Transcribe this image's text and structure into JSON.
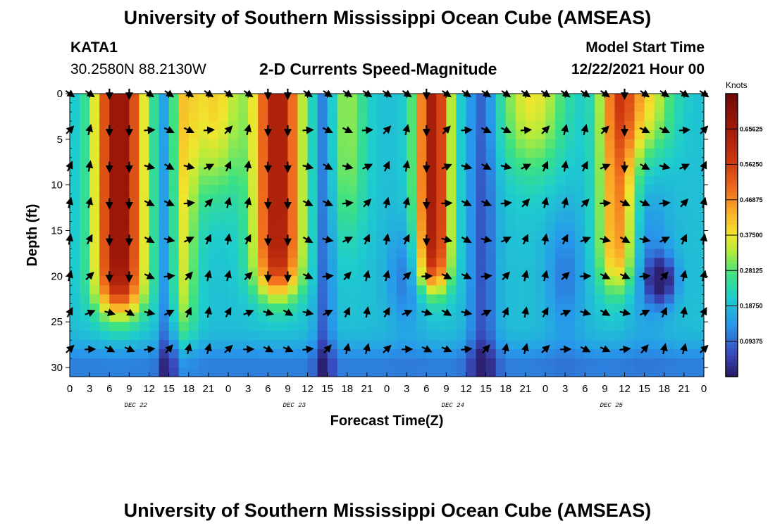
{
  "header": {
    "title": "University of Southern Mississippi Ocean Cube (AMSEAS)",
    "station": "KATA1",
    "coords": "30.2580N  88.2130W",
    "subtitle": "2-D Currents Speed-Magnitude",
    "model_start_label": "Model Start Time",
    "model_start_value": "12/22/2021 Hour 00"
  },
  "footer": {
    "title": "University of Southern Mississippi Ocean Cube (AMSEAS)"
  },
  "chart_data": {
    "type": "heatmap",
    "title": "2-D Currents Speed-Magnitude",
    "xlabel": "Forecast Time(Z)",
    "ylabel": "Depth (ft)",
    "x_tick_labels": [
      "0",
      "3",
      "6",
      "9",
      "12",
      "15",
      "18",
      "21",
      "0",
      "3",
      "6",
      "9",
      "12",
      "15",
      "18",
      "21",
      "0",
      "3",
      "6",
      "9",
      "12",
      "15",
      "18",
      "21",
      "0",
      "3",
      "6",
      "9",
      "12",
      "15",
      "18",
      "21",
      "0"
    ],
    "x_range_hours": [
      0,
      96
    ],
    "day_labels": [
      {
        "label": "DEC 22",
        "center_hour": 10
      },
      {
        "label": "DEC 23",
        "center_hour": 34
      },
      {
        "label": "DEC 24",
        "center_hour": 58
      },
      {
        "label": "DEC 25",
        "center_hour": 82
      }
    ],
    "y_ticks": [
      0,
      5,
      10,
      15,
      20,
      25,
      30
    ],
    "y_tick_labels": [
      "0",
      "5",
      "10",
      "15",
      "20",
      "25",
      "30"
    ],
    "y_range_ft": [
      0,
      31
    ],
    "colorbar": {
      "unit": "Knots",
      "min": 0,
      "max": 0.75,
      "tick_values": [
        0.65625,
        0.5625,
        0.46875,
        0.375,
        0.28125,
        0.1875,
        0.09375
      ],
      "tick_labels": [
        "0.65625",
        "0.56250",
        "0.46875",
        "0.37500",
        "0.28125",
        "0.18750",
        "0.09375"
      ]
    },
    "speed_features_knots": [
      {
        "hours": [
          3.5,
          11.5
        ],
        "depth_ft": [
          0,
          25
        ],
        "peak": 0.68,
        "note": "DEC 22 strong surface current"
      },
      {
        "hours": [
          27.5,
          36
        ],
        "depth_ft": [
          0,
          22
        ],
        "peak": 0.66,
        "note": "DEC 23 strong surface current"
      },
      {
        "hours": [
          52,
          58
        ],
        "depth_ft": [
          0,
          22
        ],
        "peak": 0.66,
        "note": "DEC 24 strong surface current"
      },
      {
        "hours": [
          71,
          85
        ],
        "depth_ft": [
          0,
          21
        ],
        "peak": 0.5,
        "note": "DEC 25 moderate surface current"
      },
      {
        "hours": [
          84,
          90
        ],
        "depth_ft": [
          18,
          22
        ],
        "peak": 0.02,
        "note": "weak current pocket"
      }
    ],
    "vector_rows_depth_ft": [
      0,
      4,
      8,
      12,
      16,
      20,
      24,
      28
    ],
    "vector_columns_hours": [
      0,
      3,
      6,
      9,
      12,
      15,
      18,
      21,
      24,
      27,
      30,
      33,
      36,
      39,
      42,
      45,
      48,
      51,
      54,
      57,
      60,
      63,
      66,
      69,
      72,
      75,
      78,
      81,
      84,
      87,
      90,
      93,
      96
    ],
    "vector_direction_note": "arrow angles in degrees, 0 = east, 90 = north"
  }
}
